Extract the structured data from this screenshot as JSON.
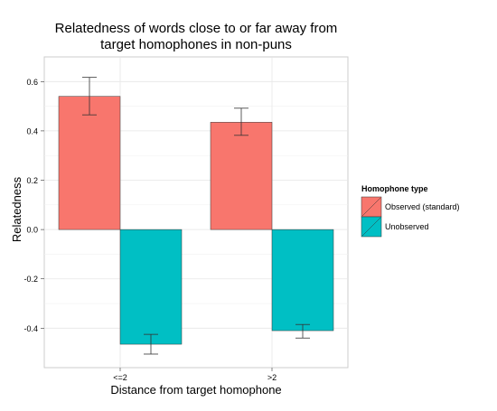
{
  "chart_data": {
    "type": "bar",
    "title": "Relatedness of words close to or far away from target homophones in non-puns",
    "title_lines": [
      "Relatedness of words close to or far away from",
      "target homophones in non-puns"
    ],
    "xlabel": "Distance from target homophone",
    "ylabel": "Relatedness",
    "categories": [
      "<=2",
      ">2"
    ],
    "ylim": [
      -0.56,
      0.7
    ],
    "yticks": [
      -0.4,
      -0.2,
      0.0,
      0.2,
      0.4,
      0.6
    ],
    "ytick_labels": [
      "-0.4",
      "-0.2",
      "0.0",
      "0.2",
      "0.4",
      "0.6"
    ],
    "grid": true,
    "legend_position": "right",
    "legend_title": "Homophone type",
    "series": [
      {
        "name": "Observed (standard)",
        "color": "#F8766D",
        "values": [
          0.54,
          0.435
        ],
        "err_low": [
          0.465,
          0.382
        ],
        "err_high": [
          0.617,
          0.492
        ]
      },
      {
        "name": "Unobserved",
        "color": "#00BFC4",
        "values": [
          -0.465,
          -0.41
        ],
        "err_low": [
          -0.505,
          -0.44
        ],
        "err_high": [
          -0.425,
          -0.385
        ]
      }
    ]
  }
}
